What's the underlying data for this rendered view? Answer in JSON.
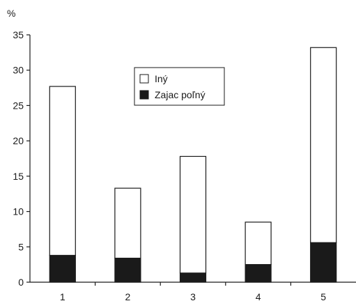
{
  "chart_data": {
    "type": "bar",
    "stacked": true,
    "title": "",
    "xlabel": "",
    "ylabel": "%",
    "ylim": [
      0,
      35
    ],
    "yticks": [
      "0",
      "5",
      "10",
      "15",
      "20",
      "25",
      "30",
      "35"
    ],
    "categories": [
      "1",
      "2",
      "3",
      "4",
      "5"
    ],
    "series": [
      {
        "name": "Zajac poľný",
        "color": "#1a1a1a",
        "values": [
          3.8,
          3.4,
          1.3,
          2.5,
          5.6
        ]
      },
      {
        "name": "Iný",
        "color": "#ffffff",
        "values": [
          23.9,
          9.9,
          16.5,
          6.0,
          27.6
        ]
      }
    ],
    "legend_position": "top-center",
    "grid": false
  }
}
